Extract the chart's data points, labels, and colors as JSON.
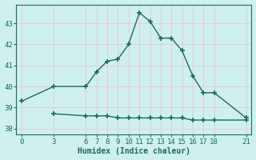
{
  "line1_x": [
    0,
    3,
    6,
    7,
    8,
    9,
    10,
    11,
    12,
    13,
    14,
    15,
    16,
    17,
    18,
    21
  ],
  "line1_y": [
    39.3,
    40.0,
    40.0,
    40.7,
    41.2,
    41.3,
    42.0,
    43.5,
    43.1,
    42.3,
    42.3,
    41.7,
    40.5,
    39.7,
    39.7,
    38.5
  ],
  "line2_x": [
    3,
    6,
    7,
    8,
    9,
    10,
    11,
    12,
    13,
    14,
    15,
    16,
    17,
    18,
    21
  ],
  "line2_y": [
    38.7,
    38.6,
    38.6,
    38.6,
    38.5,
    38.5,
    38.5,
    38.5,
    38.5,
    38.5,
    38.5,
    38.4,
    38.4,
    38.4,
    38.4
  ],
  "line_color": "#1a6b5e",
  "bg_color": "#cff0ee",
  "grid_color": "#e8c8c8",
  "xlabel": "Humidex (Indice chaleur)",
  "xticks": [
    0,
    3,
    6,
    7,
    8,
    9,
    10,
    11,
    12,
    13,
    14,
    15,
    16,
    17,
    18,
    21
  ],
  "yticks": [
    38,
    39,
    40,
    41,
    42,
    43
  ],
  "xlim": [
    -0.5,
    21.5
  ],
  "ylim": [
    37.7,
    43.9
  ],
  "marker": "+",
  "markersize": 5,
  "markeredgewidth": 1.2,
  "linewidth": 1.0,
  "xlabel_fontsize": 7,
  "tick_fontsize": 6.5
}
